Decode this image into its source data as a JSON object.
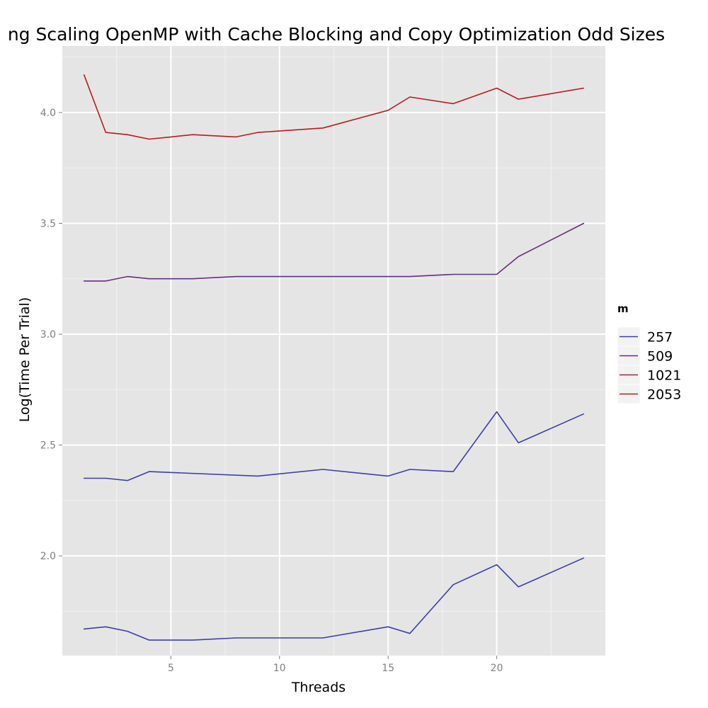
{
  "chart_data": {
    "type": "line",
    "title": "ng Scaling OpenMP with Cache Blocking and Copy Optimization Odd Sizes",
    "xlabel": "Threads",
    "ylabel": "Log(Time Per Trial)",
    "xlim": [
      0,
      25
    ],
    "ylim": [
      1.55,
      4.3
    ],
    "x_ticks": [
      5,
      10,
      15,
      20
    ],
    "y_ticks": [
      2.0,
      2.5,
      3.0,
      3.5,
      4.0
    ],
    "x_tick_labels": [
      "5",
      "10",
      "15",
      "20"
    ],
    "y_tick_labels": [
      "2.0",
      "2.5",
      "3.0",
      "3.5",
      "4.0"
    ],
    "grid": true,
    "legend": {
      "title": "m",
      "position": "right",
      "entries": [
        {
          "label": "257",
          "color": "#3b3fa8"
        },
        {
          "label": "509",
          "color": "#6a2e7c"
        },
        {
          "label": "1021",
          "color": "#a0283c"
        },
        {
          "label": "2053",
          "color": "#b81c1c"
        }
      ]
    },
    "series": [
      {
        "name": "2053",
        "color": "#b81c1c",
        "x": [
          1,
          2,
          3,
          4,
          5,
          6,
          8,
          9,
          12,
          15,
          16,
          18,
          20,
          21,
          24
        ],
        "y": [
          4.17,
          3.91,
          3.9,
          3.88,
          3.89,
          3.9,
          3.89,
          3.91,
          3.93,
          4.01,
          4.07,
          4.04,
          4.11,
          4.06,
          4.11
        ]
      },
      {
        "name": "1021",
        "color": "#6a2e7c",
        "x": [
          1,
          2,
          3,
          4,
          6,
          8,
          9,
          12,
          15,
          16,
          18,
          20,
          21,
          24
        ],
        "y": [
          3.24,
          3.24,
          3.26,
          3.25,
          3.25,
          3.26,
          3.26,
          3.26,
          3.26,
          3.26,
          3.27,
          3.27,
          3.35,
          3.5
        ]
      },
      {
        "name": "509",
        "color": "#3b3fa8",
        "x": [
          1,
          2,
          3,
          4,
          9,
          12,
          15,
          16,
          18,
          20,
          21,
          24
        ],
        "y": [
          2.35,
          2.35,
          2.34,
          2.38,
          2.36,
          2.39,
          2.36,
          2.39,
          2.38,
          2.65,
          2.51,
          2.64
        ]
      },
      {
        "name": "257",
        "color": "#3b3fa8",
        "x": [
          1,
          2,
          3,
          4,
          6,
          8,
          9,
          12,
          15,
          16,
          18,
          20,
          21,
          24
        ],
        "y": [
          1.67,
          1.68,
          1.66,
          1.62,
          1.62,
          1.63,
          1.63,
          1.63,
          1.68,
          1.65,
          1.87,
          1.96,
          1.86,
          1.99
        ]
      }
    ]
  }
}
